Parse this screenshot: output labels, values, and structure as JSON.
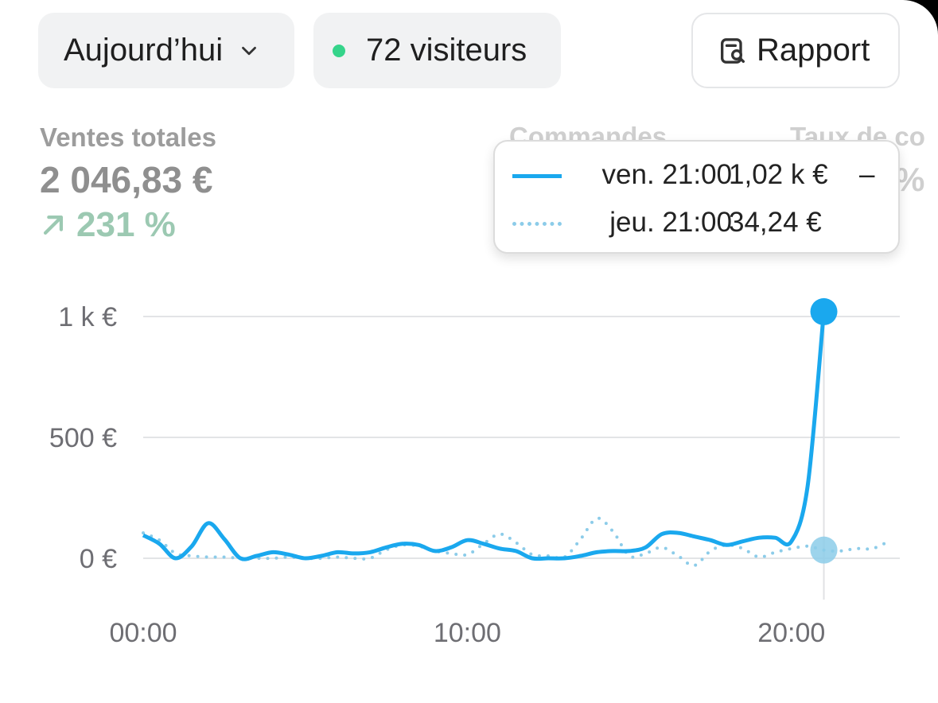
{
  "filters": {
    "date_label": "Aujourd’hui",
    "visitors_label": "72 visiteurs",
    "report_label": "Rapport"
  },
  "metrics": {
    "total_sales": {
      "label": "Ventes totales",
      "value": "2 046,83 €",
      "change": "231 %"
    },
    "orders_label": "Commandes",
    "conversion_label": "Taux de co",
    "conversion_value_fragment": "%"
  },
  "tooltip": {
    "current": {
      "label": "ven. 21:00",
      "value": "1,02 k €",
      "extra": "–"
    },
    "previous": {
      "label": "jeu. 21:00",
      "value": "34,24 €"
    }
  },
  "colors": {
    "current_series": "#1aa8ee",
    "previous_series": "#8ccce9",
    "live_dot": "#35d48a",
    "change_positive": "#9cc9b2"
  },
  "icons": {
    "date_dropdown": "chevron-down-icon",
    "visitors": "live-dot-icon",
    "report": "report-search-icon",
    "change": "arrow-up-right-icon"
  },
  "chart_data": {
    "type": "line",
    "x_unit": "hour",
    "xlim": [
      0,
      23
    ],
    "ylim": [
      -120,
      1000
    ],
    "y_ticks": [
      {
        "value": 1000,
        "label": "1 k €"
      },
      {
        "value": 500,
        "label": "500 €"
      },
      {
        "value": 0,
        "label": "0 €"
      }
    ],
    "x_ticks": [
      {
        "value": 0,
        "label": "00:00"
      },
      {
        "value": 10,
        "label": "10:00"
      },
      {
        "value": 20,
        "label": "20:00"
      }
    ],
    "highlight_x": 21,
    "series": [
      {
        "style": "solid",
        "x": [
          0,
          0.5,
          1,
          1.5,
          2,
          2.5,
          3,
          3.5,
          4,
          4.5,
          5,
          5.5,
          6,
          6.5,
          7,
          7.5,
          8,
          8.5,
          9,
          9.5,
          10,
          10.5,
          11,
          11.5,
          12,
          12.5,
          13,
          13.5,
          14,
          14.5,
          15,
          15.5,
          16,
          16.5,
          17,
          17.5,
          18,
          18.5,
          19,
          19.5,
          20,
          20.5,
          21
        ],
        "y": [
          95,
          60,
          0,
          50,
          145,
          80,
          0,
          10,
          25,
          15,
          0,
          10,
          25,
          20,
          25,
          45,
          60,
          55,
          30,
          45,
          75,
          60,
          40,
          30,
          0,
          0,
          0,
          10,
          25,
          30,
          30,
          45,
          100,
          105,
          90,
          75,
          55,
          70,
          85,
          85,
          70,
          300,
          1020
        ]
      },
      {
        "style": "dotted",
        "x": [
          0,
          0.5,
          1,
          1.5,
          2,
          2.5,
          3,
          3.5,
          4,
          4.5,
          5,
          5.5,
          6,
          6.5,
          7,
          7.5,
          8,
          8.5,
          9,
          9.5,
          10,
          10.5,
          11,
          11.5,
          12,
          12.5,
          13,
          13.5,
          14,
          14.5,
          15,
          15.5,
          16,
          16.5,
          17,
          17.5,
          18,
          18.5,
          19,
          19.5,
          20,
          20.5,
          21,
          21.5,
          22,
          22.5,
          23
        ],
        "y": [
          105,
          75,
          20,
          10,
          5,
          5,
          0,
          0,
          0,
          5,
          0,
          0,
          5,
          0,
          0,
          35,
          55,
          50,
          30,
          20,
          15,
          60,
          100,
          65,
          15,
          10,
          5,
          80,
          165,
          110,
          10,
          20,
          45,
          10,
          -30,
          30,
          55,
          40,
          5,
          25,
          40,
          50,
          34,
          30,
          40,
          40,
          70
        ]
      }
    ]
  }
}
